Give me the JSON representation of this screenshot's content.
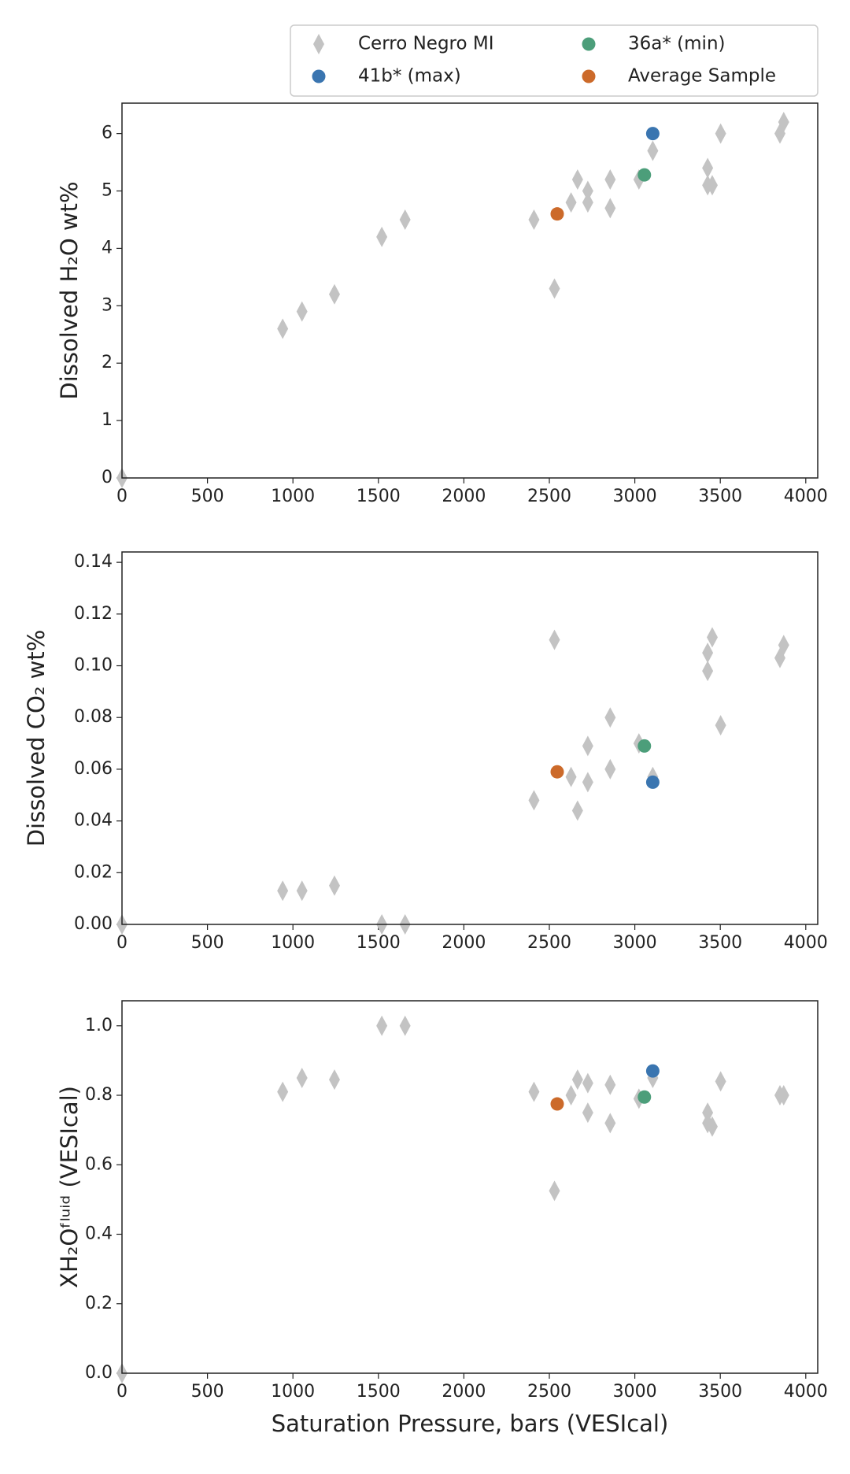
{
  "chart_data": [
    {
      "type": "scatter",
      "ylabel": "Dissolved H₂O wt%",
      "xlim": [
        0,
        4070
      ],
      "ylim": [
        0,
        6.53
      ],
      "xticks": [
        0,
        500,
        1000,
        1500,
        2000,
        2500,
        3000,
        3500,
        4000
      ],
      "yticks": [
        0,
        1,
        2,
        3,
        4,
        5,
        6
      ],
      "series": [
        {
          "name": "Cerro Negro MI",
          "marker": "diamond",
          "color": "#c3c3c3",
          "x": [
            0,
            940,
            1053,
            1243,
            1520,
            1656,
            2410,
            2530,
            2627,
            2665,
            2725,
            2725,
            2856,
            2856,
            3024,
            3105,
            3426,
            3426,
            3453,
            3502,
            3849,
            3871
          ],
          "values": [
            0,
            2.6,
            2.9,
            3.2,
            4.2,
            4.5,
            4.5,
            3.3,
            4.8,
            5.2,
            5.0,
            4.8,
            5.2,
            4.7,
            5.2,
            5.7,
            5.4,
            5.1,
            5.1,
            6.0,
            6.0,
            6.2
          ]
        },
        {
          "name": "41b* (max)",
          "marker": "circle",
          "color": "#3a75b0",
          "x": [
            3105
          ],
          "values": [
            6.0
          ]
        },
        {
          "name": "36a* (min)",
          "marker": "circle",
          "color": "#4c9e7a",
          "x": [
            3056
          ],
          "values": [
            5.28
          ]
        },
        {
          "name": "Average Sample",
          "marker": "circle",
          "color": "#cc6a2a",
          "x": [
            2546
          ],
          "values": [
            4.6
          ]
        }
      ]
    },
    {
      "type": "scatter",
      "ylabel": "Dissolved CO₂ wt%",
      "xlim": [
        0,
        4070
      ],
      "ylim": [
        0,
        0.144
      ],
      "xticks": [
        0,
        500,
        1000,
        1500,
        2000,
        2500,
        3000,
        3500,
        4000
      ],
      "yticks": [
        {
          "value": 0,
          "label": "0.00"
        },
        {
          "value": 0.02,
          "label": "0.02"
        },
        {
          "value": 0.04,
          "label": "0.04"
        },
        {
          "value": 0.06,
          "label": "0.06"
        },
        {
          "value": 0.08,
          "label": "0.08"
        },
        {
          "value": 0.1,
          "label": "0.10"
        },
        {
          "value": 0.12,
          "label": "0.12"
        },
        {
          "value": 0.14,
          "label": "0.14"
        }
      ],
      "series": [
        {
          "marker": "diamond",
          "color": "#c3c3c3",
          "x": [
            0,
            940,
            1053,
            1243,
            1520,
            1656,
            2410,
            2530,
            2627,
            2665,
            2725,
            2725,
            2856,
            2856,
            3024,
            3105,
            3426,
            3426,
            3453,
            3502,
            3849,
            3871
          ],
          "values": [
            0,
            0.013,
            0.013,
            0.015,
            0,
            0,
            0.048,
            0.11,
            0.057,
            0.044,
            0.069,
            0.055,
            0.08,
            0.06,
            0.07,
            0.057,
            0.105,
            0.098,
            0.111,
            0.077,
            0.103,
            0.108
          ]
        },
        {
          "marker": "circle",
          "color": "#3a75b0",
          "x": [
            3105
          ],
          "values": [
            0.055
          ]
        },
        {
          "marker": "circle",
          "color": "#4c9e7a",
          "x": [
            3056
          ],
          "values": [
            0.069
          ]
        },
        {
          "marker": "circle",
          "color": "#cc6a2a",
          "x": [
            2546
          ],
          "values": [
            0.059
          ]
        }
      ]
    },
    {
      "type": "scatter",
      "ylabel": "XH₂Oᶠˡᵘⁱᵈ (VESIcal)",
      "xlabel": "Saturation Pressure, bars (VESIcal)",
      "xlim": [
        0,
        4070
      ],
      "ylim": [
        0,
        1.072
      ],
      "xticks": [
        0,
        500,
        1000,
        1500,
        2000,
        2500,
        3000,
        3500,
        4000
      ],
      "yticks": [
        {
          "value": 0,
          "label": "0.0"
        },
        {
          "value": 0.2,
          "label": "0.2"
        },
        {
          "value": 0.4,
          "label": "0.4"
        },
        {
          "value": 0.6,
          "label": "0.6"
        },
        {
          "value": 0.8,
          "label": "0.8"
        },
        {
          "value": 1,
          "label": "1.0"
        }
      ],
      "series": [
        {
          "marker": "diamond",
          "color": "#c3c3c3",
          "x": [
            0,
            940,
            1053,
            1243,
            1520,
            1656,
            2410,
            2530,
            2627,
            2665,
            2725,
            2725,
            2856,
            2856,
            3024,
            3105,
            3426,
            3426,
            3453,
            3502,
            3849,
            3871
          ],
          "values": [
            0,
            0.81,
            0.85,
            0.845,
            1.0,
            1.0,
            0.81,
            0.525,
            0.8,
            0.845,
            0.835,
            0.75,
            0.83,
            0.72,
            0.79,
            0.85,
            0.75,
            0.72,
            0.71,
            0.84,
            0.8,
            0.8
          ]
        },
        {
          "marker": "circle",
          "color": "#3a75b0",
          "x": [
            3105
          ],
          "values": [
            0.87
          ]
        },
        {
          "marker": "circle",
          "color": "#4c9e7a",
          "x": [
            3056
          ],
          "values": [
            0.795
          ]
        },
        {
          "marker": "circle",
          "color": "#cc6a2a",
          "x": [
            2546
          ],
          "values": [
            0.775
          ]
        }
      ]
    }
  ]
}
